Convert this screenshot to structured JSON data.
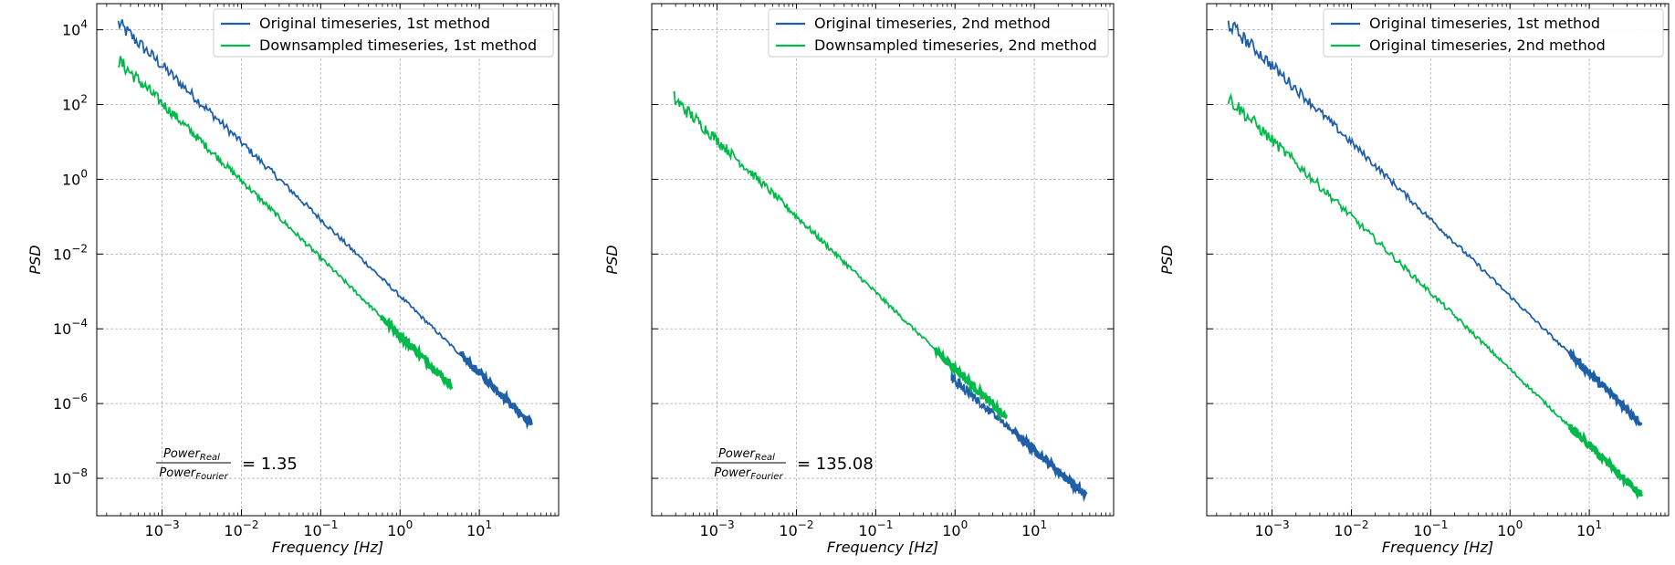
{
  "chart_data": [
    {
      "type": "line",
      "xlabel": "Frequency [Hz]",
      "ylabel": "PSD",
      "xscale": "log",
      "yscale": "log",
      "xlim": [
        0.00015,
        100
      ],
      "ylim": [
        1e-09,
        50000
      ],
      "grid": true,
      "legend_position": "top-right",
      "x_ticks": [
        "10^-3",
        "10^-2",
        "10^-1",
        "10^0",
        "10^1"
      ],
      "y_ticks": [
        "10^4",
        "10^2",
        "10^0",
        "10^-2",
        "10^-4",
        "10^-6",
        "10^-8"
      ],
      "annotation": {
        "numerator": "Power_Real",
        "denominator": "Power_Fourier",
        "value": "= 1.35"
      },
      "series": [
        {
          "name": "Original timeseries, 1st method",
          "color": "#1f5fa8",
          "x_range_hz": [
            0.00028,
            45
          ],
          "start_psd": 15000,
          "end_psd": 3e-07
        },
        {
          "name": "Downsampled timeseries, 1st method",
          "color": "#00b94a",
          "x_range_hz": [
            0.00028,
            4.5
          ],
          "start_psd": 1500,
          "end_psd": 3e-06
        }
      ]
    },
    {
      "type": "line",
      "xlabel": "Frequency [Hz]",
      "ylabel": "PSD",
      "xscale": "log",
      "yscale": "log",
      "xlim": [
        0.00015,
        100
      ],
      "ylim": [
        1e-09,
        50000
      ],
      "grid": true,
      "legend_position": "top-right",
      "x_ticks": [
        "10^-3",
        "10^-2",
        "10^-1",
        "10^0",
        "10^1"
      ],
      "annotation": {
        "numerator": "Power_Real",
        "denominator": "Power_Fourier",
        "value": "= 135.08"
      },
      "series": [
        {
          "name": "Original timeseries, 2nd method",
          "color": "#1f5fa8",
          "x_range_hz": [
            0.9,
            45
          ],
          "start_psd": 5e-06,
          "end_psd": 3.5e-09
        },
        {
          "name": "Downsampled timeseries, 2nd method",
          "color": "#00b94a",
          "x_range_hz": [
            0.00028,
            4.5
          ],
          "start_psd": 150,
          "end_psd": 4e-07
        }
      ]
    },
    {
      "type": "line",
      "xlabel": "Frequency [Hz]",
      "ylabel": "PSD",
      "xscale": "log",
      "yscale": "log",
      "xlim": [
        0.00015,
        100
      ],
      "ylim": [
        1e-09,
        50000
      ],
      "grid": true,
      "legend_position": "top-right",
      "x_ticks": [
        "10^-3",
        "10^-2",
        "10^-1",
        "10^0",
        "10^1"
      ],
      "series": [
        {
          "name": "Original timeseries, 1st method",
          "color": "#1f5fa8",
          "x_range_hz": [
            0.00028,
            45
          ],
          "start_psd": 15000,
          "end_psd": 3e-07
        },
        {
          "name": "Original timeseries, 2nd method",
          "color": "#00b94a",
          "x_range_hz": [
            0.00028,
            45
          ],
          "start_psd": 150,
          "end_psd": 3.5e-09
        }
      ]
    }
  ]
}
